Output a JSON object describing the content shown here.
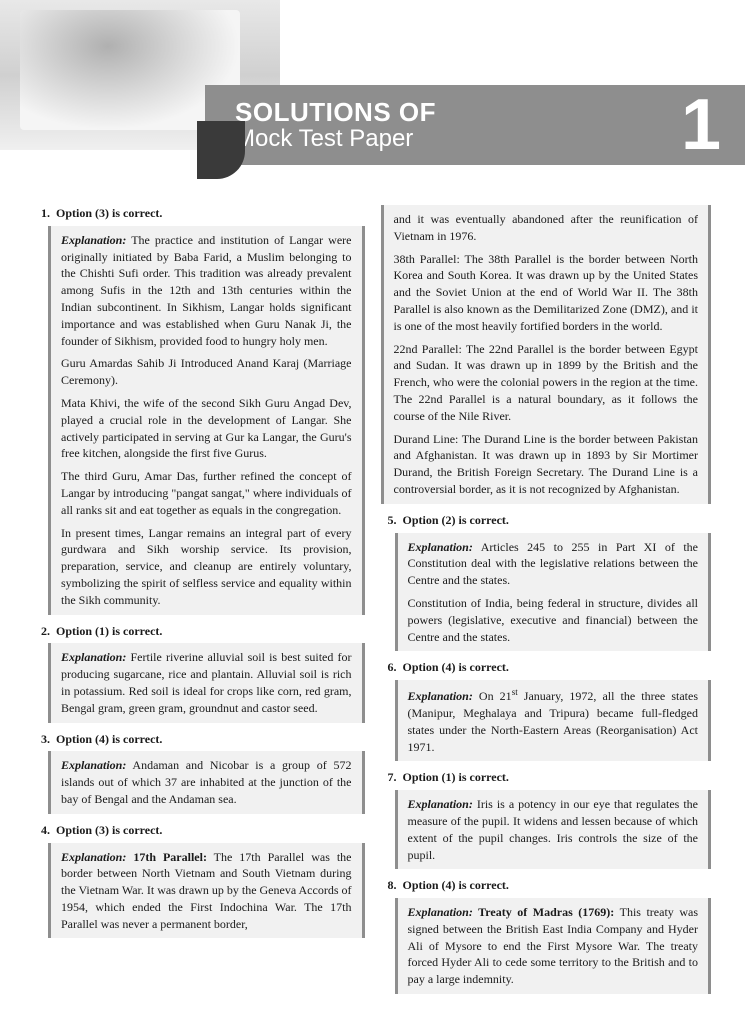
{
  "header": {
    "title_line1": "SOLUTIONS OF",
    "title_line2": "Mock Test Paper",
    "number": "1"
  },
  "left_col": {
    "q1": {
      "num": "1.",
      "answer": "Option (3) is correct.",
      "p1_lead": "Explanation:",
      "p1": " The practice and institution of Langar were originally initiated by Baba Farid, a Muslim belonging to the Chishti Sufi order. This tradition was already prevalent among Sufis in the 12th and 13th centuries within the Indian subcontinent. In Sikhism, Langar holds significant importance and was established when Guru Nanak Ji, the founder of Sikhism, provided food to hungry holy men.",
      "p2": "Guru Amardas Sahib Ji Introduced Anand Karaj (Marriage Ceremony).",
      "p3": "Mata Khivi, the wife of the second Sikh Guru Angad Dev, played a crucial role in the development of Langar. She actively participated in serving at Gur ka Langar, the Guru's free kitchen, alongside the first five Gurus.",
      "p4": "The third Guru, Amar Das, further refined the concept of Langar by introducing \"pangat sangat,\" where individuals of all ranks sit and eat together as equals in the congregation.",
      "p5": "In present times, Langar remains an integral part of every gurdwara and Sikh worship service. Its provision, preparation, service, and cleanup are entirely voluntary, symbolizing the spirit of selfless service and equality within the Sikh community."
    },
    "q2": {
      "num": "2.",
      "answer": "Option (1) is correct.",
      "p1_lead": "Explanation:",
      "p1": " Fertile riverine alluvial soil is best suited for producing sugarcane, rice and plantain. Alluvial soil is rich in potassium. Red soil is ideal for crops like corn, red gram, Bengal gram, green gram, groundnut and castor seed."
    },
    "q3": {
      "num": "3.",
      "answer": "Option (4) is correct.",
      "p1_lead": "Explanation:",
      "p1": " Andaman and Nicobar is a group of 572 islands out of which 37 are inhabited at the junction of the bay of Bengal and the Andaman sea."
    },
    "q4": {
      "num": "4.",
      "answer": "Option (3) is correct.",
      "p1_lead": "Explanation:",
      "p1_bold": " 17th Parallel:",
      "p1": " The 17th Parallel was the border between North Vietnam and South Vietnam during the Vietnam War. It was drawn up by the Geneva Accords of 1954, which ended the First Indochina War. The 17th Parallel was never a permanent border,"
    }
  },
  "right_col": {
    "q4_cont": {
      "p1": "and it was eventually abandoned after the reunification of Vietnam in 1976.",
      "p2_bold": "38th Parallel:",
      "p2": " The 38th Parallel is the border between North Korea and South Korea. It was drawn up by the United States and the Soviet Union at the end of World War II. The 38th Parallel is also known as the Demilitarized Zone (DMZ), and it is one of the most heavily fortified borders in the world.",
      "p3_bold": "22nd Parallel:",
      "p3": " The 22nd Parallel is the border between Egypt and Sudan. It was drawn up in 1899 by the British and the French, who were the colonial powers in the region at the time. The 22nd Parallel is a natural boundary, as it follows the course of the Nile River.",
      "p4_bold": "Durand Line:",
      "p4": " The Durand Line is the border between Pakistan and Afghanistan. It was drawn up in 1893 by Sir Mortimer Durand, the British Foreign Secretary. The Durand Line is a controversial border, as it is not recognized by Afghanistan."
    },
    "q5": {
      "num": "5.",
      "answer": "Option (2) is correct.",
      "p1_lead": "Explanation:",
      "p1": " Articles 245 to 255 in Part XI of the Constitution deal with the legislative relations between the Centre and the states.",
      "p2": "Constitution of India, being federal in structure, divides all powers (legislative, executive and financial) between the Centre and the states."
    },
    "q6": {
      "num": "6.",
      "answer": "Option (4) is correct.",
      "p1_lead": "Explanation:",
      "p1_a": " On 21",
      "p1_sup": "st",
      "p1_b": " January, 1972, all the three states (Manipur, Meghalaya and Tripura) became full-fledged states under the North-Eastern Areas (Reorganisation) Act 1971."
    },
    "q7": {
      "num": "7.",
      "answer": "Option (1) is correct.",
      "p1_lead": "Explanation:",
      "p1": " Iris is a potency in our eye that regulates the measure of the pupil. It widens and lessen because of which extent of the pupil changes. Iris controls the size of the pupil."
    },
    "q8": {
      "num": "8.",
      "answer": "Option (4) is correct.",
      "p1_lead": "Explanation:",
      "p1_bold": " Treaty of Madras (1769):",
      "p1": " This treaty was signed between the British East India Company and Hyder Ali of Mysore to end the First Mysore War. The treaty forced Hyder Ali to cede some territory to the British and to pay a large indemnity."
    }
  }
}
